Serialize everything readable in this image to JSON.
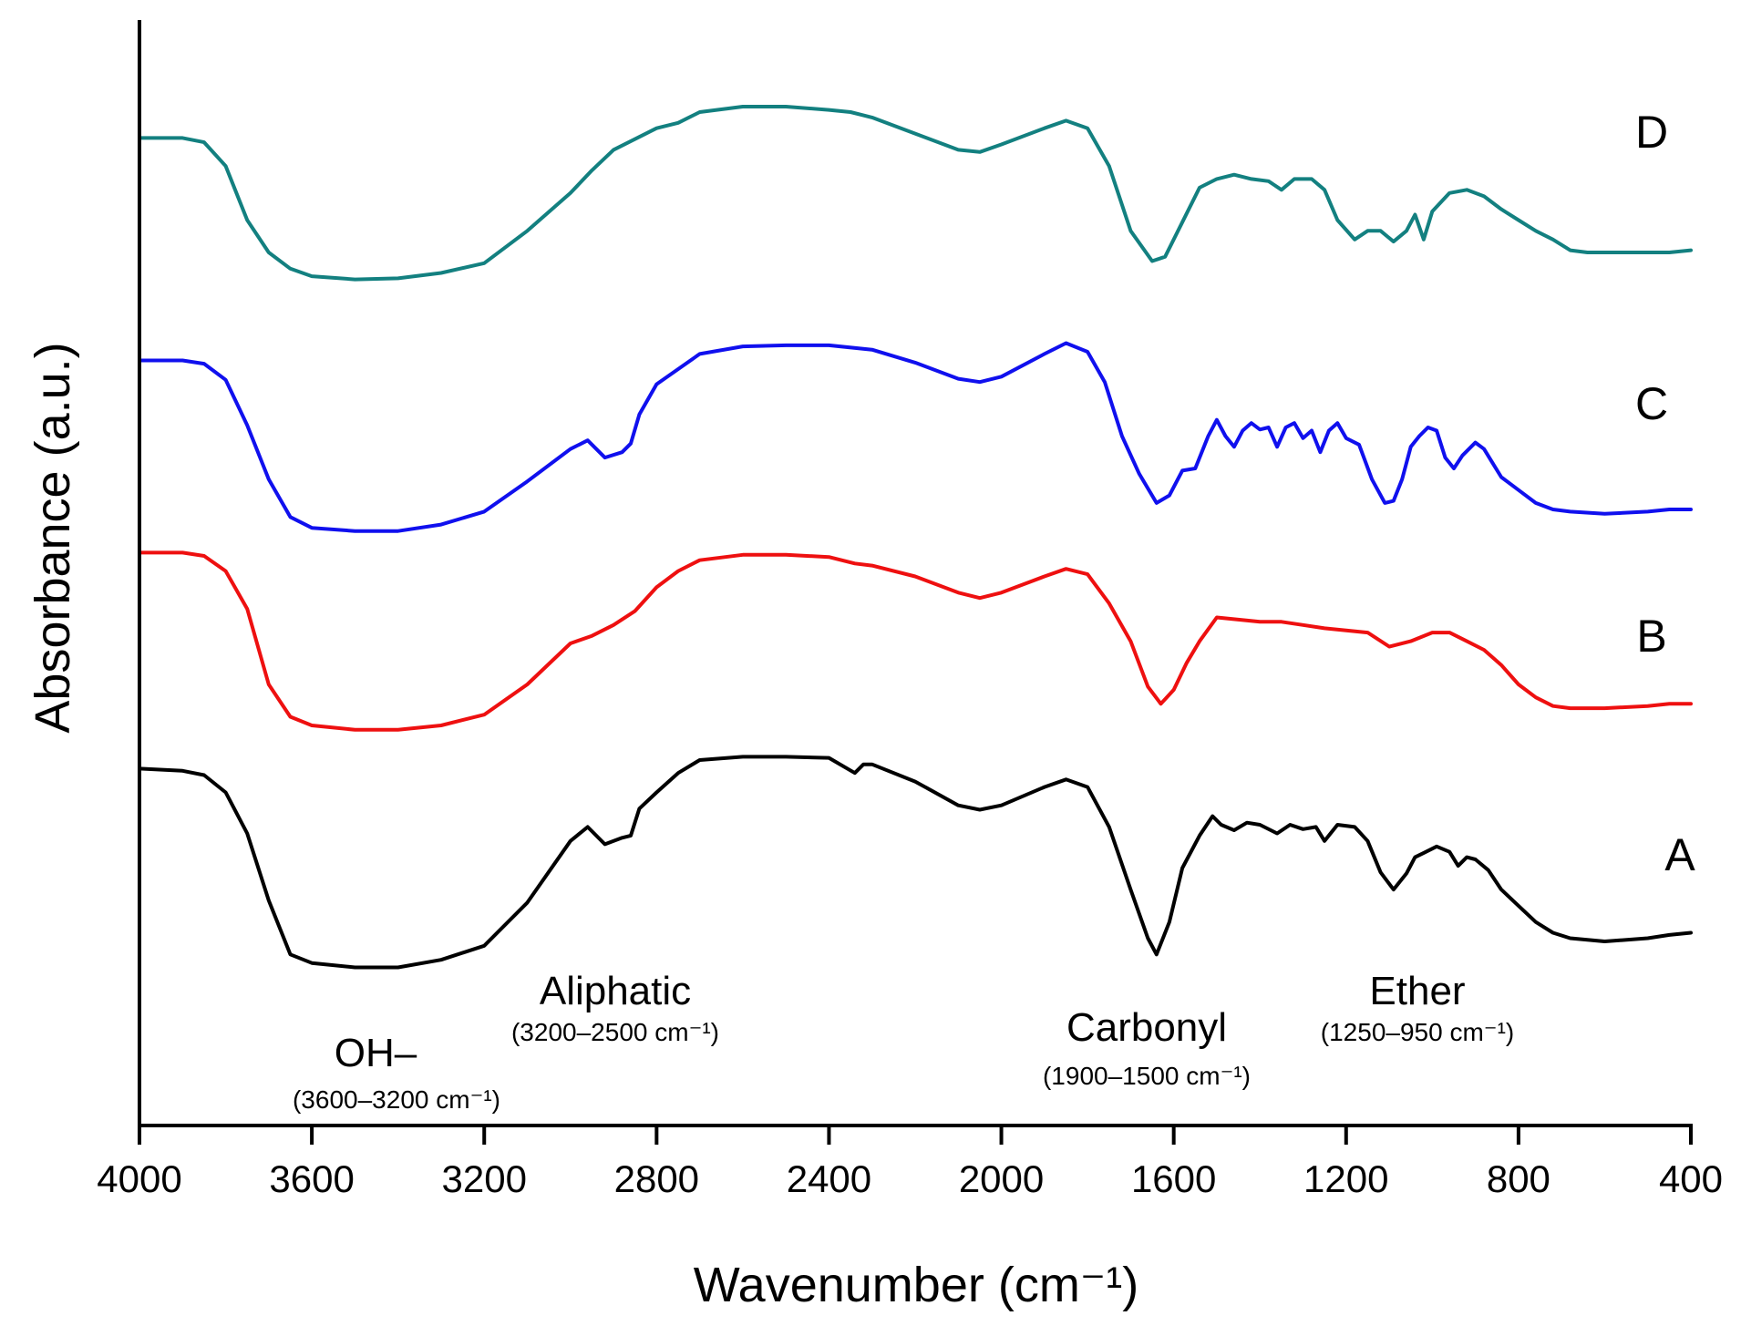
{
  "chart_data": {
    "type": "line",
    "title": "",
    "xlabel": "Wavenumber (cm⁻¹)",
    "ylabel": "Absorbance (a.u.)",
    "xlim": [
      4000,
      400
    ],
    "ylim": [
      0,
      1
    ],
    "xticks": [
      4000,
      3600,
      3200,
      2800,
      2400,
      2000,
      1600,
      1200,
      800,
      400
    ],
    "xtick_labels": [
      "4000",
      "3600",
      "3200",
      "2800",
      "2400",
      "2000",
      "1600",
      "1200",
      "800",
      "400"
    ],
    "grid": false,
    "series": [
      {
        "name": "D",
        "color": "#138080",
        "points": [
          [
            4000,
            0.906
          ],
          [
            3900,
            0.906
          ],
          [
            3850,
            0.902
          ],
          [
            3800,
            0.88
          ],
          [
            3750,
            0.83
          ],
          [
            3700,
            0.8
          ],
          [
            3650,
            0.785
          ],
          [
            3600,
            0.778
          ],
          [
            3500,
            0.775
          ],
          [
            3400,
            0.776
          ],
          [
            3300,
            0.781
          ],
          [
            3200,
            0.79
          ],
          [
            3100,
            0.82
          ],
          [
            3000,
            0.855
          ],
          [
            2950,
            0.876
          ],
          [
            2900,
            0.895
          ],
          [
            2850,
            0.905
          ],
          [
            2800,
            0.915
          ],
          [
            2750,
            0.92
          ],
          [
            2700,
            0.93
          ],
          [
            2600,
            0.935
          ],
          [
            2500,
            0.935
          ],
          [
            2400,
            0.932
          ],
          [
            2350,
            0.93
          ],
          [
            2300,
            0.925
          ],
          [
            2200,
            0.91
          ],
          [
            2100,
            0.895
          ],
          [
            2050,
            0.893
          ],
          [
            2000,
            0.9
          ],
          [
            1900,
            0.915
          ],
          [
            1850,
            0.922
          ],
          [
            1800,
            0.915
          ],
          [
            1750,
            0.88
          ],
          [
            1700,
            0.82
          ],
          [
            1650,
            0.792
          ],
          [
            1620,
            0.796
          ],
          [
            1580,
            0.828
          ],
          [
            1540,
            0.86
          ],
          [
            1500,
            0.868
          ],
          [
            1460,
            0.872
          ],
          [
            1420,
            0.868
          ],
          [
            1380,
            0.866
          ],
          [
            1350,
            0.858
          ],
          [
            1320,
            0.868
          ],
          [
            1280,
            0.868
          ],
          [
            1250,
            0.858
          ],
          [
            1220,
            0.83
          ],
          [
            1180,
            0.812
          ],
          [
            1150,
            0.82
          ],
          [
            1120,
            0.82
          ],
          [
            1090,
            0.81
          ],
          [
            1060,
            0.82
          ],
          [
            1040,
            0.835
          ],
          [
            1020,
            0.812
          ],
          [
            1000,
            0.838
          ],
          [
            960,
            0.855
          ],
          [
            920,
            0.858
          ],
          [
            880,
            0.852
          ],
          [
            840,
            0.84
          ],
          [
            800,
            0.83
          ],
          [
            760,
            0.82
          ],
          [
            720,
            0.812
          ],
          [
            680,
            0.802
          ],
          [
            640,
            0.8
          ],
          [
            600,
            0.8
          ],
          [
            550,
            0.8
          ],
          [
            500,
            0.8
          ],
          [
            450,
            0.8
          ],
          [
            400,
            0.802
          ]
        ]
      },
      {
        "name": "C",
        "color": "#1010ee",
        "points": [
          [
            4000,
            0.7
          ],
          [
            3900,
            0.7
          ],
          [
            3850,
            0.697
          ],
          [
            3800,
            0.682
          ],
          [
            3750,
            0.64
          ],
          [
            3700,
            0.59
          ],
          [
            3650,
            0.555
          ],
          [
            3600,
            0.545
          ],
          [
            3500,
            0.542
          ],
          [
            3400,
            0.542
          ],
          [
            3300,
            0.548
          ],
          [
            3200,
            0.56
          ],
          [
            3100,
            0.588
          ],
          [
            3000,
            0.618
          ],
          [
            2960,
            0.626
          ],
          [
            2920,
            0.61
          ],
          [
            2880,
            0.615
          ],
          [
            2860,
            0.623
          ],
          [
            2840,
            0.65
          ],
          [
            2800,
            0.678
          ],
          [
            2750,
            0.692
          ],
          [
            2700,
            0.706
          ],
          [
            2600,
            0.713
          ],
          [
            2500,
            0.714
          ],
          [
            2400,
            0.714
          ],
          [
            2300,
            0.71
          ],
          [
            2200,
            0.698
          ],
          [
            2100,
            0.683
          ],
          [
            2050,
            0.68
          ],
          [
            2000,
            0.685
          ],
          [
            1900,
            0.706
          ],
          [
            1850,
            0.716
          ],
          [
            1800,
            0.708
          ],
          [
            1760,
            0.68
          ],
          [
            1720,
            0.63
          ],
          [
            1680,
            0.595
          ],
          [
            1640,
            0.568
          ],
          [
            1610,
            0.575
          ],
          [
            1580,
            0.598
          ],
          [
            1550,
            0.6
          ],
          [
            1520,
            0.63
          ],
          [
            1500,
            0.645
          ],
          [
            1480,
            0.63
          ],
          [
            1460,
            0.62
          ],
          [
            1440,
            0.635
          ],
          [
            1420,
            0.642
          ],
          [
            1400,
            0.636
          ],
          [
            1380,
            0.638
          ],
          [
            1360,
            0.62
          ],
          [
            1340,
            0.638
          ],
          [
            1320,
            0.642
          ],
          [
            1300,
            0.628
          ],
          [
            1280,
            0.635
          ],
          [
            1260,
            0.615
          ],
          [
            1240,
            0.635
          ],
          [
            1220,
            0.642
          ],
          [
            1200,
            0.628
          ],
          [
            1170,
            0.622
          ],
          [
            1140,
            0.59
          ],
          [
            1110,
            0.568
          ],
          [
            1090,
            0.57
          ],
          [
            1070,
            0.59
          ],
          [
            1050,
            0.62
          ],
          [
            1030,
            0.63
          ],
          [
            1010,
            0.638
          ],
          [
            990,
            0.635
          ],
          [
            970,
            0.61
          ],
          [
            950,
            0.6
          ],
          [
            930,
            0.612
          ],
          [
            900,
            0.624
          ],
          [
            880,
            0.618
          ],
          [
            860,
            0.605
          ],
          [
            840,
            0.592
          ],
          [
            800,
            0.58
          ],
          [
            760,
            0.568
          ],
          [
            720,
            0.562
          ],
          [
            680,
            0.56
          ],
          [
            600,
            0.558
          ],
          [
            500,
            0.56
          ],
          [
            450,
            0.562
          ],
          [
            400,
            0.562
          ]
        ]
      },
      {
        "name": "B",
        "color": "#ee1010",
        "points": [
          [
            4000,
            0.522
          ],
          [
            3900,
            0.522
          ],
          [
            3850,
            0.519
          ],
          [
            3800,
            0.505
          ],
          [
            3750,
            0.47
          ],
          [
            3700,
            0.4
          ],
          [
            3650,
            0.37
          ],
          [
            3600,
            0.362
          ],
          [
            3500,
            0.358
          ],
          [
            3400,
            0.358
          ],
          [
            3300,
            0.362
          ],
          [
            3200,
            0.372
          ],
          [
            3100,
            0.4
          ],
          [
            3000,
            0.438
          ],
          [
            2950,
            0.445
          ],
          [
            2900,
            0.455
          ],
          [
            2850,
            0.468
          ],
          [
            2800,
            0.49
          ],
          [
            2750,
            0.505
          ],
          [
            2700,
            0.515
          ],
          [
            2600,
            0.52
          ],
          [
            2500,
            0.52
          ],
          [
            2400,
            0.518
          ],
          [
            2340,
            0.512
          ],
          [
            2300,
            0.51
          ],
          [
            2200,
            0.5
          ],
          [
            2100,
            0.485
          ],
          [
            2050,
            0.48
          ],
          [
            2000,
            0.485
          ],
          [
            1900,
            0.5
          ],
          [
            1850,
            0.507
          ],
          [
            1800,
            0.502
          ],
          [
            1750,
            0.475
          ],
          [
            1700,
            0.44
          ],
          [
            1660,
            0.398
          ],
          [
            1630,
            0.382
          ],
          [
            1600,
            0.395
          ],
          [
            1570,
            0.42
          ],
          [
            1540,
            0.44
          ],
          [
            1500,
            0.462
          ],
          [
            1450,
            0.46
          ],
          [
            1400,
            0.458
          ],
          [
            1350,
            0.458
          ],
          [
            1300,
            0.455
          ],
          [
            1250,
            0.452
          ],
          [
            1200,
            0.45
          ],
          [
            1150,
            0.448
          ],
          [
            1100,
            0.435
          ],
          [
            1050,
            0.44
          ],
          [
            1000,
            0.448
          ],
          [
            960,
            0.448
          ],
          [
            920,
            0.44
          ],
          [
            880,
            0.432
          ],
          [
            840,
            0.418
          ],
          [
            800,
            0.4
          ],
          [
            760,
            0.388
          ],
          [
            720,
            0.38
          ],
          [
            680,
            0.378
          ],
          [
            600,
            0.378
          ],
          [
            500,
            0.38
          ],
          [
            450,
            0.382
          ],
          [
            400,
            0.382
          ]
        ]
      },
      {
        "name": "A",
        "color": "#000000",
        "points": [
          [
            4000,
            0.322
          ],
          [
            3900,
            0.32
          ],
          [
            3850,
            0.316
          ],
          [
            3800,
            0.3
          ],
          [
            3750,
            0.262
          ],
          [
            3700,
            0.2
          ],
          [
            3650,
            0.15
          ],
          [
            3600,
            0.142
          ],
          [
            3500,
            0.138
          ],
          [
            3400,
            0.138
          ],
          [
            3300,
            0.145
          ],
          [
            3200,
            0.158
          ],
          [
            3100,
            0.198
          ],
          [
            3000,
            0.255
          ],
          [
            2960,
            0.268
          ],
          [
            2920,
            0.252
          ],
          [
            2880,
            0.258
          ],
          [
            2860,
            0.26
          ],
          [
            2840,
            0.285
          ],
          [
            2800,
            0.3
          ],
          [
            2750,
            0.318
          ],
          [
            2700,
            0.33
          ],
          [
            2600,
            0.333
          ],
          [
            2500,
            0.333
          ],
          [
            2400,
            0.332
          ],
          [
            2340,
            0.318
          ],
          [
            2320,
            0.326
          ],
          [
            2300,
            0.326
          ],
          [
            2200,
            0.31
          ],
          [
            2100,
            0.288
          ],
          [
            2050,
            0.284
          ],
          [
            2000,
            0.288
          ],
          [
            1900,
            0.305
          ],
          [
            1850,
            0.312
          ],
          [
            1800,
            0.305
          ],
          [
            1750,
            0.268
          ],
          [
            1700,
            0.21
          ],
          [
            1660,
            0.165
          ],
          [
            1640,
            0.15
          ],
          [
            1610,
            0.18
          ],
          [
            1580,
            0.23
          ],
          [
            1540,
            0.26
          ],
          [
            1510,
            0.278
          ],
          [
            1490,
            0.27
          ],
          [
            1460,
            0.265
          ],
          [
            1430,
            0.272
          ],
          [
            1400,
            0.27
          ],
          [
            1360,
            0.262
          ],
          [
            1330,
            0.27
          ],
          [
            1300,
            0.266
          ],
          [
            1270,
            0.268
          ],
          [
            1250,
            0.255
          ],
          [
            1220,
            0.27
          ],
          [
            1180,
            0.268
          ],
          [
            1150,
            0.255
          ],
          [
            1120,
            0.226
          ],
          [
            1090,
            0.21
          ],
          [
            1060,
            0.225
          ],
          [
            1040,
            0.24
          ],
          [
            1020,
            0.244
          ],
          [
            990,
            0.25
          ],
          [
            960,
            0.245
          ],
          [
            940,
            0.232
          ],
          [
            920,
            0.24
          ],
          [
            900,
            0.238
          ],
          [
            870,
            0.228
          ],
          [
            840,
            0.21
          ],
          [
            800,
            0.195
          ],
          [
            760,
            0.18
          ],
          [
            720,
            0.17
          ],
          [
            680,
            0.165
          ],
          [
            600,
            0.162
          ],
          [
            500,
            0.165
          ],
          [
            450,
            0.168
          ],
          [
            400,
            0.17
          ]
        ]
      }
    ],
    "series_labels": [
      "D",
      "C",
      "B",
      "A"
    ],
    "annotations": [
      {
        "name": "OH–",
        "range": "(3600–3200 cm⁻¹)"
      },
      {
        "name": "Aliphatic",
        "range": "(3200–2500 cm⁻¹)"
      },
      {
        "name": "Carbonyl",
        "range": "(1900–1500 cm⁻¹)"
      },
      {
        "name": "Ether",
        "range": "(1250–950 cm⁻¹)"
      }
    ]
  }
}
